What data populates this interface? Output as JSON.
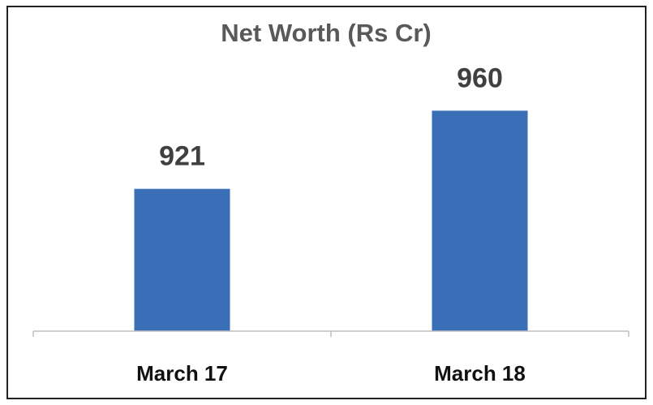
{
  "chart_data": {
    "type": "bar",
    "title": "Net Worth (Rs Cr)",
    "categories": [
      "March 17",
      "March 18"
    ],
    "values": [
      921,
      960
    ],
    "color": "#3a6fb8",
    "ylim": [
      850,
      980
    ]
  }
}
